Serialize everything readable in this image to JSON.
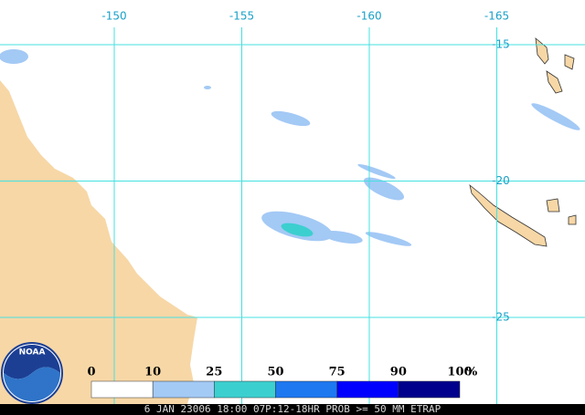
{
  "map": {
    "longitude_ticks": [
      -150,
      -155,
      -160,
      -165
    ],
    "latitude_ticks": [
      -15,
      -20,
      -25
    ],
    "legend": {
      "ticks": [
        0,
        10,
        25,
        50,
        75,
        90,
        100
      ],
      "unit": "%",
      "colors": [
        "#ffffff",
        "#a3c9f5",
        "#3ccfcf",
        "#1e78f0",
        "#0000ff",
        "#00008c"
      ]
    },
    "logo": "NOAA",
    "caption": "6 JAN 23006 18:00 07P:12-18HR PROB >= 50 MM ETRAP"
  }
}
